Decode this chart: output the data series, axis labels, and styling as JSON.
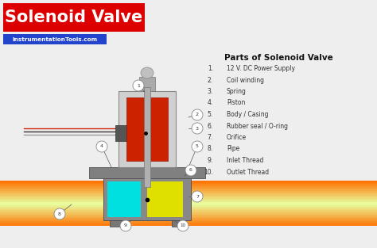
{
  "title": "Solenoid Valve",
  "subtitle": "InstrumentationTools.com",
  "parts_title": "Parts of Solenoid Valve",
  "parts": [
    [
      "1.",
      "12 V. DC Power Supply"
    ],
    [
      "2.",
      "Coil winding"
    ],
    [
      "3.",
      "Spring"
    ],
    [
      "4.",
      "Piston"
    ],
    [
      "5.",
      "Body / Casing"
    ],
    [
      "6.",
      "Rubber seal / O-ring"
    ],
    [
      "7.",
      "Orifice"
    ],
    [
      "8.",
      "Pipe"
    ],
    [
      "9.",
      "Inlet Thread"
    ],
    [
      "10.",
      "Outlet Thread"
    ]
  ],
  "bg_color": "#eeeeee",
  "title_bg": "#dd0000",
  "title_color": "#ffffff",
  "subtitle_bg": "#2244cc",
  "subtitle_color": "#ffffff",
  "coil_color": "#cc2200",
  "body_color": "#909090",
  "cyan_color": "#00e0e0",
  "yellow_color": "#e0e000",
  "wire_colors": [
    "#cc2200",
    "#333333",
    "#999999"
  ]
}
